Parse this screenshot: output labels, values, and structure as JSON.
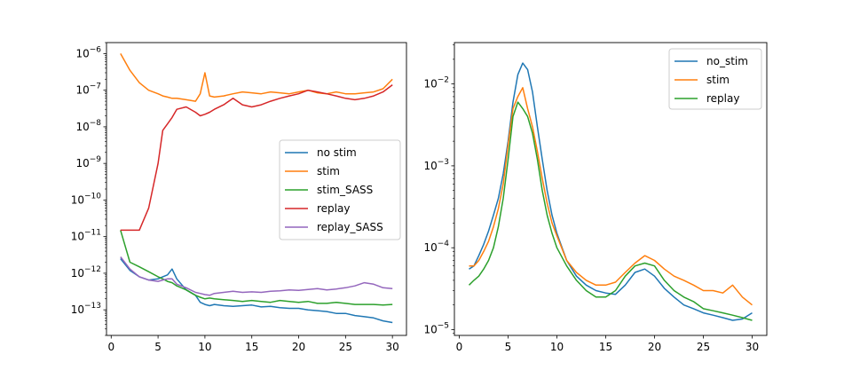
{
  "chart_data": [
    {
      "type": "line",
      "title": "",
      "xlabel": "",
      "ylabel": "",
      "yscale": "log",
      "xlim": [
        -0.5,
        31.5
      ],
      "ylim": [
        2e-14,
        2e-06
      ],
      "grid": false,
      "legend_position": "center-right",
      "x_ticks": [
        "0",
        "5",
        "10",
        "15",
        "20",
        "25",
        "30"
      ],
      "y_ticks": [
        {
          "base": "10",
          "exp": "−6"
        },
        {
          "base": "10",
          "exp": "−7"
        },
        {
          "base": "10",
          "exp": "−8"
        },
        {
          "base": "10",
          "exp": "−9"
        },
        {
          "base": "10",
          "exp": "−10"
        },
        {
          "base": "10",
          "exp": "−11"
        },
        {
          "base": "10",
          "exp": "−12"
        },
        {
          "base": "10",
          "exp": "−13"
        }
      ],
      "x": [
        1,
        2,
        3,
        4,
        5,
        5.5,
        6,
        6.5,
        7,
        8,
        9,
        9.5,
        10,
        10.5,
        11,
        12,
        13,
        14,
        15,
        16,
        17,
        18,
        19,
        20,
        21,
        22,
        23,
        24,
        25,
        26,
        27,
        28,
        29,
        30
      ],
      "series": [
        {
          "name": "no stim",
          "color": "#1f77b4",
          "values": [
            2.5e-12,
            1.2e-12,
            8e-13,
            6.5e-13,
            7e-13,
            8e-13,
            9e-13,
            1.3e-12,
            7e-13,
            3.5e-13,
            2.5e-13,
            1.6e-13,
            1.4e-13,
            1.3e-13,
            1.4e-13,
            1.3e-13,
            1.25e-13,
            1.3e-13,
            1.35e-13,
            1.2e-13,
            1.25e-13,
            1.15e-13,
            1.1e-13,
            1.1e-13,
            1e-13,
            9.5e-14,
            9e-14,
            8e-14,
            8e-14,
            7e-14,
            6.5e-14,
            6e-14,
            5e-14,
            4.5e-14
          ]
        },
        {
          "name": "stim",
          "color": "#ff7f0e",
          "values": [
            1e-06,
            3.5e-07,
            1.6e-07,
            1e-07,
            8e-08,
            7e-08,
            6.5e-08,
            6e-08,
            6e-08,
            5.5e-08,
            5e-08,
            8e-08,
            3e-07,
            7e-08,
            6.5e-08,
            7e-08,
            8e-08,
            9e-08,
            8.5e-08,
            8e-08,
            9e-08,
            8.5e-08,
            8e-08,
            9e-08,
            1e-07,
            8.5e-08,
            8e-08,
            9e-08,
            8e-08,
            8e-08,
            8.5e-08,
            9e-08,
            1.1e-07,
            2e-07
          ]
        },
        {
          "name": "stim_SASS",
          "color": "#2ca02c",
          "values": [
            1.5e-11,
            2e-12,
            1.5e-12,
            1.1e-12,
            8e-13,
            7e-13,
            6e-13,
            5.5e-13,
            4.5e-13,
            3.5e-13,
            2.5e-13,
            2.2e-13,
            2e-13,
            2.1e-13,
            2e-13,
            1.9e-13,
            1.8e-13,
            1.7e-13,
            1.8e-13,
            1.7e-13,
            1.6e-13,
            1.8e-13,
            1.7e-13,
            1.6e-13,
            1.7e-13,
            1.5e-13,
            1.5e-13,
            1.6e-13,
            1.5e-13,
            1.4e-13,
            1.4e-13,
            1.4e-13,
            1.35e-13,
            1.4e-13
          ]
        },
        {
          "name": "replay",
          "color": "#d62728",
          "values": [
            1.5e-11,
            1.5e-11,
            1.5e-11,
            6e-11,
            1e-09,
            8e-09,
            1.2e-08,
            1.8e-08,
            3e-08,
            3.5e-08,
            2.5e-08,
            2e-08,
            2.2e-08,
            2.5e-08,
            3e-08,
            4e-08,
            6e-08,
            4e-08,
            3.5e-08,
            4e-08,
            5e-08,
            6e-08,
            7e-08,
            8e-08,
            1e-07,
            9e-08,
            8e-08,
            7e-08,
            6e-08,
            5.5e-08,
            6e-08,
            7e-08,
            9e-08,
            1.4e-07
          ]
        },
        {
          "name": "replay_SASS",
          "color": "#9467bd",
          "values": [
            2.8e-12,
            1.3e-12,
            8e-13,
            6.5e-13,
            6e-13,
            6.5e-13,
            7e-13,
            7e-13,
            5e-13,
            4e-13,
            3e-13,
            2.8e-13,
            2.6e-13,
            2.5e-13,
            2.8e-13,
            3e-13,
            3.2e-13,
            3e-13,
            3.1e-13,
            3e-13,
            3.2e-13,
            3.3e-13,
            3.5e-13,
            3.4e-13,
            3.6e-13,
            3.8e-13,
            3.5e-13,
            3.7e-13,
            4e-13,
            4.5e-13,
            5.5e-13,
            5e-13,
            4e-13,
            3.8e-13
          ]
        }
      ]
    },
    {
      "type": "line",
      "title": "",
      "xlabel": "",
      "ylabel": "",
      "yscale": "log",
      "xlim": [
        -0.5,
        31.5
      ],
      "ylim": [
        8.5e-06,
        0.032
      ],
      "grid": false,
      "legend_position": "top-right",
      "x_ticks": [
        "0",
        "5",
        "10",
        "15",
        "20",
        "25",
        "30"
      ],
      "y_ticks": [
        {
          "base": "10",
          "exp": "−2"
        },
        {
          "base": "10",
          "exp": "−3"
        },
        {
          "base": "10",
          "exp": "−4"
        },
        {
          "base": "10",
          "exp": "−5"
        }
      ],
      "x": [
        1,
        1.5,
        2,
        2.5,
        3,
        3.5,
        4,
        4.5,
        5,
        5.5,
        6,
        6.5,
        7,
        7.5,
        8,
        8.5,
        9,
        9.5,
        10,
        11,
        12,
        13,
        14,
        15,
        16,
        17,
        18,
        19,
        20,
        21,
        22,
        23,
        24,
        25,
        26,
        27,
        28,
        29,
        30
      ],
      "series": [
        {
          "name": "no_stim",
          "color": "#1f77b4",
          "values": [
            5.5e-05,
            6e-05,
            8e-05,
            0.00011,
            0.00016,
            0.00025,
            0.0004,
            0.0008,
            0.002,
            0.006,
            0.013,
            0.018,
            0.015,
            0.008,
            0.003,
            0.0012,
            0.0005,
            0.00025,
            0.00015,
            7e-05,
            4.5e-05,
            3.5e-05,
            3e-05,
            2.8e-05,
            2.7e-05,
            3.5e-05,
            5e-05,
            5.5e-05,
            4.5e-05,
            3.2e-05,
            2.5e-05,
            2e-05,
            1.8e-05,
            1.6e-05,
            1.5e-05,
            1.4e-05,
            1.3e-05,
            1.35e-05,
            1.6e-05
          ]
        },
        {
          "name": "stim",
          "color": "#ff7f0e",
          "values": [
            6e-05,
            6e-05,
            7e-05,
            9e-05,
            0.00012,
            0.00018,
            0.0003,
            0.0006,
            0.0018,
            0.005,
            0.007,
            0.009,
            0.005,
            0.003,
            0.0015,
            0.0007,
            0.00035,
            0.0002,
            0.00014,
            7e-05,
            5e-05,
            4e-05,
            3.5e-05,
            3.5e-05,
            3.8e-05,
            5e-05,
            6.5e-05,
            8e-05,
            7e-05,
            5.5e-05,
            4.5e-05,
            4e-05,
            3.5e-05,
            3e-05,
            3e-05,
            2.8e-05,
            3.5e-05,
            2.5e-05,
            2e-05
          ]
        },
        {
          "name": "replay",
          "color": "#2ca02c",
          "values": [
            3.5e-05,
            4e-05,
            4.5e-05,
            5.5e-05,
            7e-05,
            0.0001,
            0.00018,
            0.0004,
            0.0012,
            0.004,
            0.006,
            0.005,
            0.004,
            0.0025,
            0.0012,
            0.0005,
            0.00025,
            0.00015,
            0.0001,
            6e-05,
            4e-05,
            3e-05,
            2.5e-05,
            2.5e-05,
            3e-05,
            4.5e-05,
            6e-05,
            6.5e-05,
            6e-05,
            4e-05,
            3e-05,
            2.5e-05,
            2.2e-05,
            1.8e-05,
            1.7e-05,
            1.6e-05,
            1.5e-05,
            1.4e-05,
            1.3e-05
          ]
        }
      ]
    }
  ]
}
